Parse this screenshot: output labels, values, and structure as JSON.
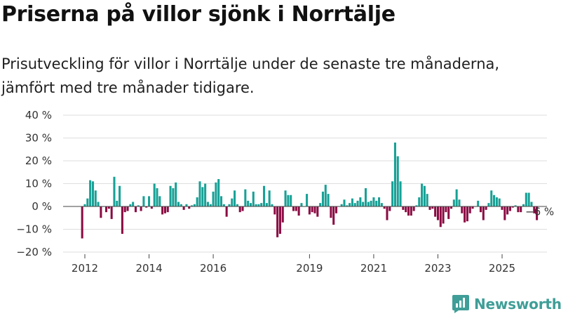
{
  "header": {
    "title": "Priserna på villor sjönk i Norrtälje",
    "subtitle": "Prisutveckling för villor i Norrtälje under de senaste tre månaderna, jämfört med tre månader tidigare."
  },
  "brand": {
    "name": "Newsworthy",
    "color": "#3f9e97",
    "icon": "bar-chart-document-icon"
  },
  "colors": {
    "positive": "#17a196",
    "negative": "#8b0b43"
  },
  "chart_data": {
    "type": "bar",
    "title": "",
    "xlabel": "",
    "ylabel": "",
    "ylim": [
      -20,
      40
    ],
    "yticks": [
      -20,
      -10,
      0,
      10,
      20,
      30,
      40
    ],
    "ytick_labels": [
      "−20 %",
      "−10 %",
      "0 %",
      "10 %",
      "20 %",
      "30 %",
      "40 %"
    ],
    "xticks": [
      "2012",
      "2014",
      "2016",
      "2019",
      "2021",
      "2023",
      "2025"
    ],
    "grid": true,
    "legend": "none",
    "last_value_label": "−6 %",
    "period": {
      "start": "2011-12",
      "end": "2025-10",
      "step": "month"
    },
    "values": [
      -14,
      1,
      3.5,
      11.5,
      11,
      7,
      2,
      -5,
      0,
      -2.5,
      -1,
      -5.5,
      13,
      2.5,
      9,
      -12,
      -2.5,
      -2,
      1,
      2,
      -2.5,
      0.5,
      -2,
      4.5,
      -0.5,
      4.5,
      -1,
      10,
      8,
      4.5,
      -3.5,
      -3,
      -2.5,
      9,
      8,
      10.5,
      2,
      1,
      -1.5,
      1,
      -1,
      0.5,
      1,
      4,
      11,
      8.5,
      10,
      2,
      1,
      6.5,
      10.5,
      12,
      4.5,
      1,
      -4.5,
      1,
      3.5,
      7,
      1,
      -2.5,
      -2,
      7.5,
      2.5,
      1.5,
      6.5,
      1,
      1,
      1.5,
      9,
      1.5,
      7,
      1,
      -3.5,
      -13.5,
      -12,
      -7,
      7,
      5,
      5,
      -2,
      -2,
      -4,
      1.5,
      0,
      5.5,
      -3.5,
      -2.5,
      -3,
      -4.5,
      1.5,
      6.5,
      9.5,
      5.5,
      -5,
      -8,
      -3,
      0,
      1,
      3,
      0.5,
      1.5,
      3.5,
      1.5,
      2.5,
      4,
      2,
      8,
      2,
      2.5,
      4,
      2.5,
      4,
      1.5,
      -1,
      -6,
      -2,
      11,
      28,
      22,
      11,
      -1.5,
      -2.5,
      -4,
      -4,
      -2,
      0.5,
      4,
      10,
      9,
      5.5,
      -1.5,
      -1,
      -4.5,
      -6,
      -9,
      -7.5,
      -2.5,
      -5.5,
      -1,
      3,
      7.5,
      3,
      -3,
      -7,
      -6.5,
      -3,
      -1,
      0,
      2.5,
      -2.5,
      -6,
      -1.5,
      1.5,
      7,
      5,
      4,
      3.5,
      -1.5,
      -6,
      -3.5,
      -2,
      -0.5,
      0.5,
      -2.5,
      -2.5,
      1,
      6,
      6,
      2,
      -3,
      -6
    ]
  }
}
